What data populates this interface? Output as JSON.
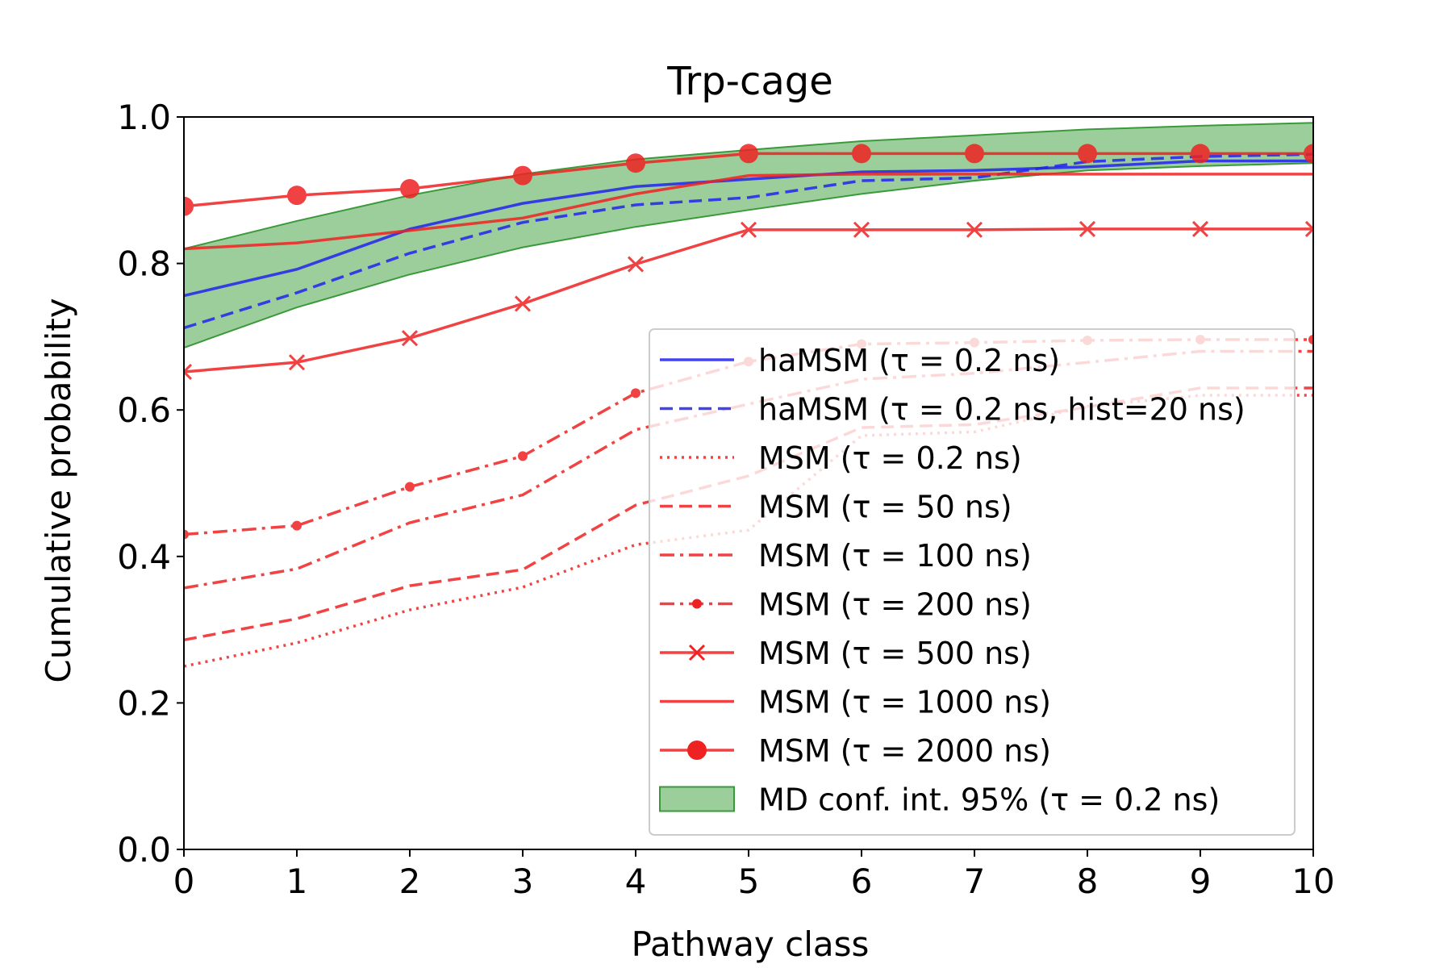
{
  "chart_data": {
    "type": "line",
    "title": "Trp-cage",
    "xlabel": "Pathway class",
    "ylabel": "Cumulative probability",
    "xlim": [
      0,
      10
    ],
    "ylim": [
      0.0,
      1.0
    ],
    "x": [
      0,
      1,
      2,
      3,
      4,
      5,
      6,
      7,
      8,
      9,
      10
    ],
    "xticks": [
      "0",
      "1",
      "2",
      "3",
      "4",
      "5",
      "6",
      "7",
      "8",
      "9",
      "10"
    ],
    "yticks": [
      "0.0",
      "0.2",
      "0.4",
      "0.6",
      "0.8",
      "1.0"
    ],
    "grid": false,
    "legend_position": "lower-right",
    "band": {
      "name": "MD conf. int. 95% (τ = 0.2 ns)",
      "lower": [
        0.685,
        0.74,
        0.785,
        0.822,
        0.85,
        0.873,
        0.895,
        0.913,
        0.927,
        0.933,
        0.937
      ],
      "upper": [
        0.82,
        0.858,
        0.893,
        0.922,
        0.942,
        0.955,
        0.967,
        0.975,
        0.983,
        0.988,
        0.992
      ],
      "fill": "#5aad5a",
      "edge": "#3a9a3a"
    },
    "series": [
      {
        "name": "haMSM (τ = 0.2 ns)",
        "color": "#2222ee",
        "dash": "solid",
        "marker": "none",
        "values": [
          0.756,
          0.792,
          0.847,
          0.882,
          0.905,
          0.915,
          0.925,
          0.927,
          0.932,
          0.94,
          0.94
        ]
      },
      {
        "name": "haMSM (τ = 0.2 ns, hist=20 ns)",
        "color": "#2222ee",
        "dash": "dashed",
        "marker": "none",
        "values": [
          0.712,
          0.76,
          0.814,
          0.856,
          0.88,
          0.89,
          0.913,
          0.917,
          0.939,
          0.946,
          0.949
        ]
      },
      {
        "name": "MSM (τ = 0.2 ns)",
        "color": "#ee2222",
        "dash": "dotted",
        "marker": "none",
        "values": [
          0.25,
          0.282,
          0.327,
          0.358,
          0.416,
          0.436,
          0.565,
          0.57,
          0.605,
          0.62,
          0.62
        ]
      },
      {
        "name": "MSM (τ = 50 ns)",
        "color": "#ee2222",
        "dash": "dashed",
        "marker": "none",
        "values": [
          0.286,
          0.315,
          0.36,
          0.382,
          0.47,
          0.51,
          0.576,
          0.58,
          0.604,
          0.63,
          0.63
        ]
      },
      {
        "name": "MSM (τ = 100 ns)",
        "color": "#ee2222",
        "dash": "dashdot",
        "marker": "none",
        "values": [
          0.357,
          0.383,
          0.446,
          0.484,
          0.573,
          0.608,
          0.642,
          0.65,
          0.665,
          0.68,
          0.68
        ]
      },
      {
        "name": "MSM (τ = 200 ns)",
        "color": "#ee2222",
        "dash": "dashdot",
        "marker": "dot",
        "values": [
          0.43,
          0.442,
          0.495,
          0.537,
          0.623,
          0.666,
          0.69,
          0.692,
          0.695,
          0.696,
          0.696
        ]
      },
      {
        "name": "MSM (τ = 500 ns)",
        "color": "#ee2222",
        "dash": "solid",
        "marker": "x",
        "values": [
          0.652,
          0.665,
          0.698,
          0.745,
          0.799,
          0.846,
          0.846,
          0.846,
          0.847,
          0.847,
          0.847
        ]
      },
      {
        "name": "MSM (τ = 1000 ns)",
        "color": "#ee2222",
        "dash": "solid",
        "marker": "none",
        "values": [
          0.82,
          0.828,
          0.845,
          0.862,
          0.895,
          0.92,
          0.922,
          0.922,
          0.922,
          0.922,
          0.922
        ]
      },
      {
        "name": "MSM (τ = 2000 ns)",
        "color": "#ee2222",
        "dash": "solid",
        "marker": "circle",
        "values": [
          0.878,
          0.893,
          0.902,
          0.92,
          0.937,
          0.95,
          0.95,
          0.95,
          0.95,
          0.95,
          0.95
        ]
      }
    ]
  }
}
